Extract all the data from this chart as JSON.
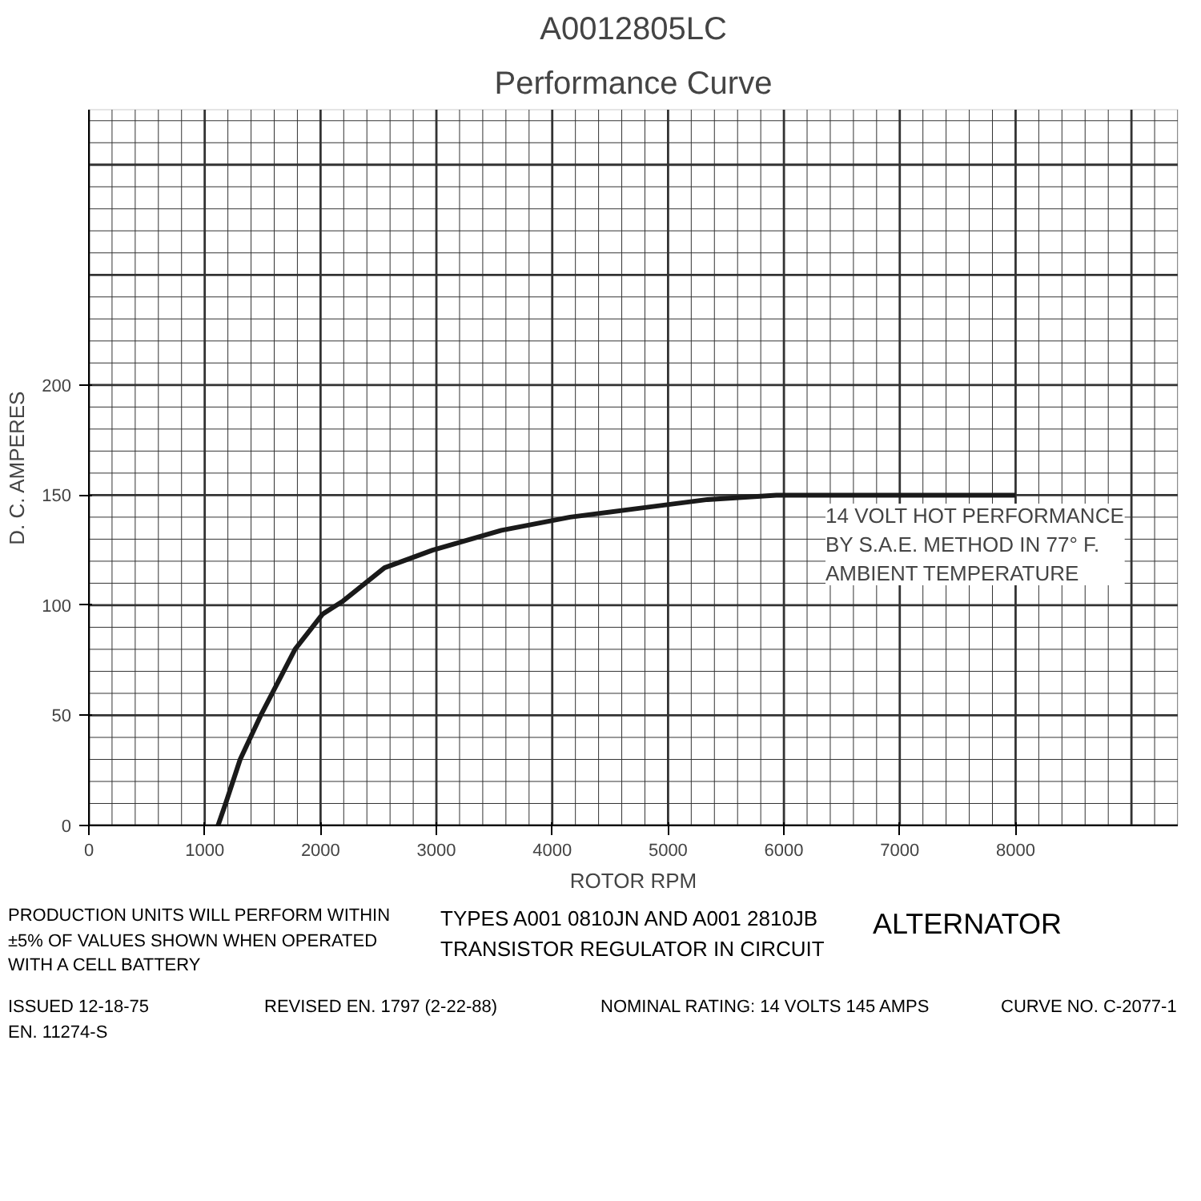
{
  "chart_data": {
    "type": "line",
    "title": "A0012805LC",
    "subtitle": "Performance Curve",
    "xlabel": "ROTOR RPM",
    "ylabel": "D. C. AMPERES",
    "x": [
      1115,
      1187,
      1306,
      1484,
      1780,
      2018,
      2196,
      2552,
      2967,
      3561,
      4154,
      4748,
      5341,
      5935,
      8000
    ],
    "series": [
      {
        "color": "#1a1a1a",
        "values": [
          0,
          11,
          30,
          50,
          80,
          96,
          102,
          117,
          125,
          134,
          140,
          144,
          148,
          150,
          150
        ]
      }
    ],
    "xlim": [
      0,
      9400
    ],
    "ylim": [
      0,
      325
    ],
    "xticks": [
      0,
      1000,
      2000,
      3000,
      4000,
      5000,
      6000,
      7000,
      8000
    ],
    "yticks": [
      0,
      50,
      100,
      150,
      200
    ],
    "grid": true,
    "marker": "none",
    "line_style": "solid",
    "annotations": [
      "14 VOLT HOT PERFORMANCE\nBY S.A.E. METHOD IN 77° F.\nAMBIENT TEMPERATURE",
      "PRODUCTION UNITS WILL PERFORM WITHIN\n±5% OF VALUES SHOWN WHEN OPERATED\nWITH A CELL BATTERY",
      "TYPES A001 0810JN AND A001 2810JB\nTRANSISTOR REGULATOR IN CIRCUIT",
      "ALTERNATOR",
      "ISSUED 12-18-75\nEN. 11274-S",
      "REVISED EN. 1797 (2-22-88)",
      "NOMINAL RATING: 14 VOLTS 145 AMPS",
      "CURVE NO. C-2077-1"
    ]
  }
}
